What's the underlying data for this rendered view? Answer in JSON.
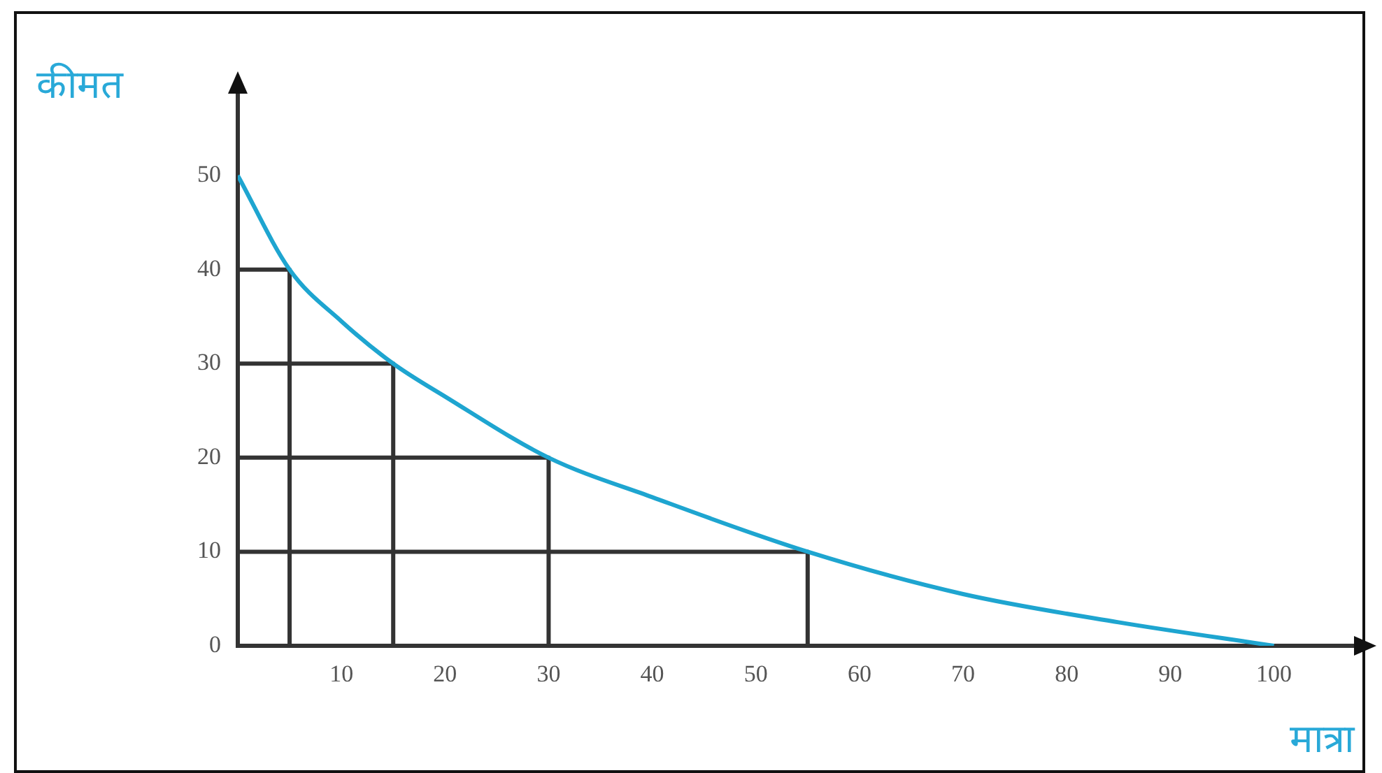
{
  "chart_data": {
    "type": "line",
    "ylabel": "कीमत",
    "xlabel": "मात्रा",
    "xlim": [
      0,
      108
    ],
    "ylim": [
      0,
      59
    ],
    "xticks": [
      10,
      20,
      30,
      40,
      50,
      60,
      70,
      80,
      90,
      100
    ],
    "yticks": [
      0,
      10,
      20,
      30,
      40,
      50
    ],
    "grid": false,
    "legend": false,
    "marker": "none",
    "series": [
      {
        "color": "#1ea5d0",
        "x": [
          0,
          5,
          10,
          15,
          20,
          30,
          40,
          55,
          70,
          85,
          100
        ],
        "values": [
          50,
          40,
          34.5,
          30,
          26.5,
          20,
          15.8,
          10,
          5.5,
          2.5,
          0
        ]
      },
      {
        "color": "#333333",
        "x": [
          0,
          5,
          5
        ],
        "values": [
          40,
          40,
          0
        ]
      },
      {
        "color": "#333333",
        "x": [
          0,
          15,
          15
        ],
        "values": [
          30,
          30,
          0
        ]
      },
      {
        "color": "#333333",
        "x": [
          0,
          30,
          30
        ],
        "values": [
          20,
          20,
          0
        ]
      },
      {
        "color": "#333333",
        "x": [
          0,
          55,
          55
        ],
        "values": [
          10,
          10,
          0
        ]
      }
    ]
  }
}
